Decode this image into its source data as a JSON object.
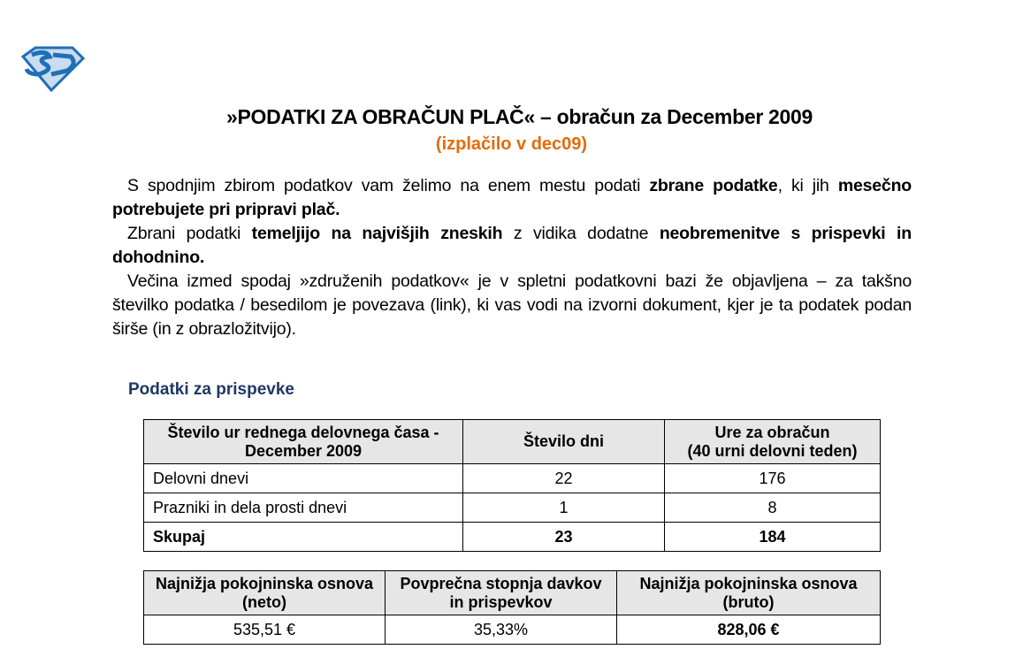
{
  "logo": {
    "text": "SD",
    "colors": {
      "outline": "#1f6fb8",
      "fill": "#c9dcf0"
    }
  },
  "title": "»PODATKI ZA OBRAČUN PLAČ« – obračun za December 2009",
  "subtitle": "(izplačilo v dec09)",
  "intro": [
    [
      {
        "t": "S spodnjim zbirom podatkov vam želimo na enem mestu podati ",
        "b": false
      },
      {
        "t": "zbrane podatke",
        "b": true
      },
      {
        "t": ", ki jih ",
        "b": false
      },
      {
        "t": "mesečno potrebujete pri pripravi plač.",
        "b": true
      }
    ],
    [
      {
        "t": "Zbrani podatki ",
        "b": false
      },
      {
        "t": "temeljijo na najvišjih zneskih",
        "b": true
      },
      {
        "t": " z vidika dodatne ",
        "b": false
      },
      {
        "t": "neobremenitve s prispevki in dohodnino.",
        "b": true
      }
    ],
    [
      {
        "t": "Večina izmed spodaj »združenih podatkov« je v spletni podatkovni bazi že objavljena – za takšno številko podatka / besedilom je povezava (link), ki vas vodi na izvorni dokument, kjer je ta podatek podan širše (in z obrazložitvijo).",
        "b": false
      }
    ]
  ],
  "section_heading": "Podatki za prispevke",
  "table1": {
    "headers": [
      "Število ur rednega delovnega časa - December 2009",
      "Število dni",
      "Ure za obračun\n(40 urni delovni teden)"
    ],
    "rows": [
      [
        "Delovni dnevi",
        "22",
        "176"
      ],
      [
        "Prazniki in dela prosti dnevi",
        "1",
        "8"
      ],
      [
        "Skupaj",
        "23",
        "184"
      ]
    ]
  },
  "table2": {
    "headers": [
      "Najnižja pokojninska osnova (neto)",
      "Povprečna stopnja davkov in prispevkov",
      "Najnižja pokojninska osnova (bruto)"
    ],
    "values": [
      "535,51 €",
      "35,33%",
      "828,06 €"
    ]
  }
}
